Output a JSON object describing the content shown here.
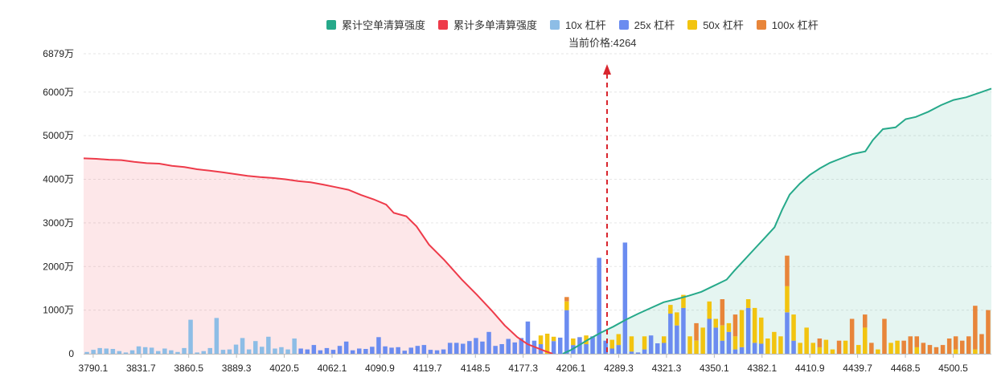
{
  "chart_data": {
    "type": "bar+line",
    "legend": [
      {
        "label": "累计空单清算强度",
        "color": "#26a98a"
      },
      {
        "label": "累计多单清算强度",
        "color": "#ee3b4a"
      },
      {
        "label": "10x 杠杆",
        "color": "#8dbde6"
      },
      {
        "label": "25x 杠杆",
        "color": "#6b8cf0"
      },
      {
        "label": "50x 杠杆",
        "color": "#f2c410"
      },
      {
        "label": "100x 杠杆",
        "color": "#e8853a"
      }
    ],
    "current_price_label": "当前价格:4264",
    "current_price": 4264,
    "y_ticks": [
      "0",
      "1000万",
      "2000万",
      "3000万",
      "4000万",
      "5000万",
      "6000万",
      "6879万"
    ],
    "y_tick_values": [
      0,
      1000,
      2000,
      3000,
      4000,
      5000,
      6000,
      6879
    ],
    "ylim": [
      0,
      6879
    ],
    "x_ticks": [
      "3790.1",
      "3831.7",
      "3860.5",
      "3889.3",
      "4020.5",
      "4062.1",
      "4090.9",
      "4119.7",
      "4148.5",
      "4177.3",
      "4206.1",
      "4289.3",
      "4321.3",
      "4350.1",
      "4382.1",
      "4410.9",
      "4439.7",
      "4468.5",
      "4500.5"
    ],
    "long_cum_line": [
      [
        0,
        4480
      ],
      [
        5,
        4470
      ],
      [
        10,
        4450
      ],
      [
        15,
        4440
      ],
      [
        20,
        4400
      ],
      [
        25,
        4370
      ],
      [
        30,
        4360
      ],
      [
        35,
        4310
      ],
      [
        40,
        4280
      ],
      [
        45,
        4230
      ],
      [
        50,
        4200
      ],
      [
        55,
        4160
      ],
      [
        60,
        4120
      ],
      [
        65,
        4080
      ],
      [
        70,
        4050
      ],
      [
        75,
        4030
      ],
      [
        80,
        4000
      ],
      [
        85,
        3960
      ],
      [
        90,
        3930
      ],
      [
        95,
        3880
      ],
      [
        100,
        3820
      ],
      [
        105,
        3760
      ],
      [
        110,
        3640
      ],
      [
        115,
        3540
      ],
      [
        120,
        3420
      ],
      [
        123,
        3230
      ],
      [
        128,
        3150
      ],
      [
        132,
        2920
      ],
      [
        137,
        2500
      ],
      [
        143,
        2150
      ],
      [
        150,
        1700
      ],
      [
        156,
        1350
      ],
      [
        162,
        980
      ],
      [
        167,
        650
      ],
      [
        172,
        380
      ],
      [
        176,
        220
      ],
      [
        180,
        130
      ],
      [
        183,
        60
      ],
      [
        186,
        0
      ]
    ],
    "short_cum_line": [
      [
        190,
        0
      ],
      [
        193,
        80
      ],
      [
        196,
        180
      ],
      [
        200,
        320
      ],
      [
        205,
        480
      ],
      [
        210,
        620
      ],
      [
        215,
        780
      ],
      [
        220,
        920
      ],
      [
        225,
        1050
      ],
      [
        230,
        1180
      ],
      [
        235,
        1250
      ],
      [
        240,
        1330
      ],
      [
        245,
        1420
      ],
      [
        250,
        1560
      ],
      [
        255,
        1700
      ],
      [
        258,
        1900
      ],
      [
        262,
        2150
      ],
      [
        266,
        2400
      ],
      [
        270,
        2650
      ],
      [
        274,
        2900
      ],
      [
        277,
        3300
      ],
      [
        280,
        3650
      ],
      [
        284,
        3900
      ],
      [
        288,
        4100
      ],
      [
        292,
        4250
      ],
      [
        296,
        4380
      ],
      [
        300,
        4470
      ],
      [
        305,
        4580
      ],
      [
        310,
        4640
      ],
      [
        313,
        4900
      ],
      [
        317,
        5150
      ],
      [
        322,
        5190
      ],
      [
        326,
        5380
      ],
      [
        330,
        5430
      ],
      [
        335,
        5550
      ],
      [
        340,
        5700
      ],
      [
        345,
        5820
      ],
      [
        350,
        5880
      ],
      [
        355,
        5980
      ],
      [
        360,
        6080
      ]
    ],
    "bars": [
      [
        0,
        0,
        0,
        40,
        0,
        0
      ],
      [
        1,
        0,
        0,
        90,
        0,
        0
      ],
      [
        2,
        0,
        0,
        130,
        0,
        0
      ],
      [
        3,
        0,
        0,
        120,
        0,
        0
      ],
      [
        4,
        0,
        0,
        110,
        0,
        0
      ],
      [
        5,
        0,
        0,
        60,
        0,
        0
      ],
      [
        6,
        0,
        0,
        30,
        0,
        0
      ],
      [
        7,
        0,
        0,
        80,
        0,
        0
      ],
      [
        8,
        0,
        0,
        170,
        0,
        0
      ],
      [
        9,
        0,
        0,
        150,
        0,
        0
      ],
      [
        10,
        0,
        0,
        140,
        0,
        0
      ],
      [
        11,
        0,
        0,
        60,
        0,
        0
      ],
      [
        12,
        0,
        0,
        120,
        0,
        0
      ],
      [
        13,
        0,
        0,
        80,
        0,
        0
      ],
      [
        14,
        0,
        0,
        40,
        0,
        0
      ],
      [
        15,
        0,
        0,
        130,
        0,
        0
      ],
      [
        16,
        0,
        0,
        780,
        0,
        0
      ],
      [
        17,
        0,
        0,
        30,
        0,
        0
      ],
      [
        18,
        0,
        0,
        60,
        0,
        0
      ],
      [
        19,
        0,
        0,
        130,
        0,
        0
      ],
      [
        20,
        0,
        0,
        820,
        0,
        0
      ],
      [
        21,
        0,
        0,
        90,
        0,
        0
      ],
      [
        22,
        0,
        0,
        100,
        0,
        0
      ],
      [
        23,
        0,
        0,
        210,
        0,
        0
      ],
      [
        24,
        0,
        0,
        360,
        0,
        0
      ],
      [
        25,
        0,
        0,
        100,
        0,
        0
      ],
      [
        26,
        0,
        0,
        290,
        0,
        0
      ],
      [
        27,
        0,
        0,
        160,
        0,
        0
      ],
      [
        28,
        0,
        0,
        390,
        0,
        0
      ],
      [
        29,
        0,
        0,
        120,
        0,
        0
      ],
      [
        30,
        0,
        0,
        150,
        0,
        0
      ],
      [
        31,
        0,
        0,
        100,
        0,
        0
      ],
      [
        32,
        0,
        0,
        350,
        0,
        0
      ],
      [
        33,
        0,
        0,
        120,
        0,
        0
      ],
      [
        34,
        0,
        0,
        100,
        0,
        0
      ],
      [
        35,
        0,
        0,
        200,
        0,
        0
      ],
      [
        36,
        0,
        0,
        80,
        0,
        0
      ],
      [
        37,
        0,
        0,
        130,
        0,
        0
      ],
      [
        38,
        0,
        0,
        90,
        0,
        0
      ],
      [
        39,
        0,
        0,
        180,
        0,
        0
      ],
      [
        40,
        0,
        0,
        280,
        0,
        0
      ],
      [
        41,
        0,
        0,
        80,
        0,
        0
      ],
      [
        42,
        0,
        0,
        120,
        0,
        0
      ],
      [
        43,
        0,
        0,
        110,
        0,
        0
      ],
      [
        44,
        0,
        0,
        160,
        0,
        0
      ],
      [
        45,
        0,
        0,
        380,
        0,
        0
      ],
      [
        46,
        0,
        0,
        170,
        0,
        0
      ],
      [
        47,
        0,
        0,
        140,
        0,
        0
      ],
      [
        48,
        0,
        0,
        150,
        0,
        0
      ],
      [
        49,
        0,
        0,
        70,
        0,
        0
      ],
      [
        50,
        0,
        0,
        140,
        0,
        0
      ],
      [
        51,
        0,
        0,
        180,
        0,
        0
      ],
      [
        52,
        0,
        0,
        200,
        0,
        0
      ],
      [
        53,
        0,
        0,
        90,
        0,
        0
      ],
      [
        54,
        0,
        0,
        80,
        0,
        0
      ],
      [
        55,
        0,
        0,
        100,
        0,
        0
      ],
      [
        56,
        0,
        0,
        250,
        0,
        0
      ],
      [
        57,
        0,
        0,
        250,
        0,
        0
      ],
      [
        58,
        0,
        0,
        230,
        0,
        0
      ],
      [
        59,
        0,
        0,
        290,
        0,
        0
      ],
      [
        60,
        0,
        0,
        360,
        0,
        0
      ],
      [
        61,
        0,
        0,
        280,
        0,
        0
      ],
      [
        62,
        0,
        0,
        500,
        0,
        0
      ],
      [
        63,
        0,
        0,
        180,
        0,
        0
      ],
      [
        64,
        0,
        0,
        220,
        0,
        0
      ],
      [
        65,
        0,
        0,
        340,
        0,
        0
      ],
      [
        66,
        0,
        0,
        260,
        0,
        0
      ],
      [
        67,
        0,
        0,
        360,
        0,
        0
      ],
      [
        68,
        0,
        0,
        740,
        0,
        0
      ],
      [
        69,
        0,
        0,
        300,
        0,
        0
      ],
      [
        70,
        0,
        0,
        220,
        200,
        0
      ],
      [
        71,
        0,
        0,
        0,
        460,
        0
      ],
      [
        72,
        0,
        0,
        290,
        100,
        0
      ],
      [
        73,
        0,
        0,
        370,
        0,
        0
      ],
      [
        74,
        0,
        0,
        1000,
        200,
        100
      ],
      [
        75,
        0,
        0,
        200,
        150,
        0
      ],
      [
        76,
        0,
        0,
        380,
        0,
        0
      ],
      [
        77,
        0,
        0,
        220,
        200,
        0
      ],
      [
        78,
        0,
        0,
        400,
        0,
        0
      ],
      [
        79,
        0,
        0,
        2200,
        0,
        0
      ],
      [
        80,
        0,
        0,
        300,
        0,
        0
      ],
      [
        81,
        0,
        0,
        120,
        200,
        0
      ],
      [
        82,
        0,
        0,
        200,
        250,
        0
      ],
      [
        83,
        0,
        0,
        2550,
        0,
        0
      ],
      [
        84,
        0,
        0,
        50,
        350,
        0
      ],
      [
        85,
        0,
        0,
        30,
        0,
        0
      ],
      [
        86,
        0,
        0,
        100,
        300,
        0
      ],
      [
        87,
        0,
        0,
        420,
        0,
        0
      ],
      [
        88,
        0,
        0,
        240,
        0,
        0
      ],
      [
        89,
        0,
        0,
        250,
        150,
        0
      ],
      [
        90,
        0,
        0,
        920,
        200,
        0
      ],
      [
        91,
        0,
        0,
        650,
        300,
        0
      ],
      [
        92,
        0,
        0,
        1050,
        300,
        0
      ],
      [
        93,
        0,
        0,
        0,
        400,
        0
      ],
      [
        94,
        0,
        0,
        0,
        300,
        400
      ],
      [
        95,
        0,
        0,
        0,
        600,
        0
      ],
      [
        96,
        0,
        0,
        800,
        400,
        0
      ],
      [
        97,
        0,
        0,
        600,
        200,
        0
      ],
      [
        98,
        0,
        0,
        300,
        350,
        600
      ],
      [
        99,
        0,
        0,
        500,
        200,
        0
      ],
      [
        100,
        0,
        0,
        100,
        300,
        500
      ],
      [
        101,
        0,
        0,
        150,
        850,
        0
      ],
      [
        102,
        0,
        0,
        1050,
        200,
        0
      ],
      [
        103,
        0,
        0,
        250,
        800,
        0
      ],
      [
        104,
        0,
        0,
        230,
        600,
        0
      ],
      [
        105,
        0,
        0,
        0,
        350,
        0
      ],
      [
        106,
        0,
        0,
        0,
        500,
        0
      ],
      [
        107,
        0,
        0,
        0,
        400,
        0
      ],
      [
        108,
        0,
        0,
        950,
        600,
        700
      ],
      [
        109,
        0,
        0,
        300,
        600,
        0
      ],
      [
        110,
        0,
        0,
        0,
        250,
        0
      ],
      [
        111,
        0,
        0,
        0,
        600,
        0
      ],
      [
        112,
        0,
        0,
        0,
        250,
        0
      ],
      [
        113,
        0,
        0,
        0,
        150,
        200
      ],
      [
        114,
        0,
        0,
        0,
        320,
        0
      ],
      [
        115,
        0,
        0,
        0,
        100,
        0
      ],
      [
        116,
        0,
        0,
        0,
        0,
        300
      ],
      [
        117,
        0,
        0,
        0,
        300,
        0
      ],
      [
        118,
        0,
        0,
        0,
        0,
        800
      ],
      [
        119,
        0,
        0,
        0,
        200,
        0
      ],
      [
        120,
        0,
        0,
        0,
        600,
        300
      ],
      [
        121,
        0,
        0,
        0,
        0,
        250
      ],
      [
        122,
        0,
        0,
        0,
        100,
        0
      ],
      [
        123,
        0,
        0,
        0,
        0,
        800
      ],
      [
        124,
        0,
        0,
        0,
        250,
        0
      ],
      [
        125,
        0,
        0,
        0,
        300,
        0
      ],
      [
        126,
        0,
        0,
        0,
        0,
        300
      ],
      [
        127,
        0,
        0,
        0,
        0,
        400
      ],
      [
        128,
        0,
        0,
        0,
        150,
        250
      ],
      [
        129,
        0,
        0,
        0,
        0,
        250
      ],
      [
        130,
        0,
        0,
        0,
        0,
        200
      ],
      [
        131,
        0,
        0,
        0,
        0,
        150
      ],
      [
        132,
        0,
        0,
        0,
        0,
        200
      ],
      [
        133,
        0,
        0,
        0,
        0,
        350
      ],
      [
        134,
        0,
        0,
        0,
        100,
        300
      ],
      [
        135,
        0,
        0,
        0,
        0,
        300
      ],
      [
        136,
        0,
        0,
        0,
        0,
        400
      ],
      [
        137,
        0,
        0,
        0,
        100,
        1000
      ],
      [
        138,
        0,
        0,
        0,
        0,
        450
      ],
      [
        139,
        0,
        0,
        0,
        0,
        1000
      ]
    ]
  }
}
